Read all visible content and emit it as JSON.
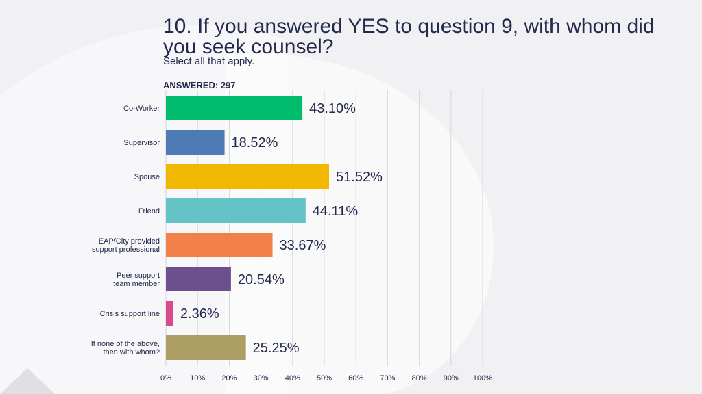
{
  "slide": {
    "title": "10. If you answered YES to question 9, with whom did you seek counsel?",
    "subtitle": "Select all that apply.",
    "answered": "ANSWERED: 297"
  },
  "chart_data": {
    "type": "bar",
    "orientation": "horizontal",
    "categories": [
      [
        "Co-Worker"
      ],
      [
        "Supervisor"
      ],
      [
        "Spouse"
      ],
      [
        "Friend"
      ],
      [
        "EAP/City provided",
        "support professional"
      ],
      [
        "Peer support",
        "team member"
      ],
      [
        "Crisis support line"
      ],
      [
        "If none of the above,",
        "then with whom?"
      ]
    ],
    "values": [
      43.1,
      18.52,
      51.52,
      44.11,
      33.67,
      20.54,
      2.36,
      25.25
    ],
    "value_labels": [
      "43.10%",
      "18.52%",
      "51.52%",
      "44.11%",
      "33.67%",
      "20.54%",
      "2.36%",
      "25.25%"
    ],
    "colors": [
      "#00bd6e",
      "#4e7ab5",
      "#f0b800",
      "#64c4c5",
      "#f28149",
      "#6d4f8f",
      "#d94b8a",
      "#ad9e66"
    ],
    "xlim": [
      0,
      100
    ],
    "xticks": [
      "0%",
      "10%",
      "20%",
      "30%",
      "40%",
      "50%",
      "60%",
      "70%",
      "80%",
      "90%",
      "100%"
    ],
    "grid": true,
    "gridline_color": "#d6d6dc"
  }
}
